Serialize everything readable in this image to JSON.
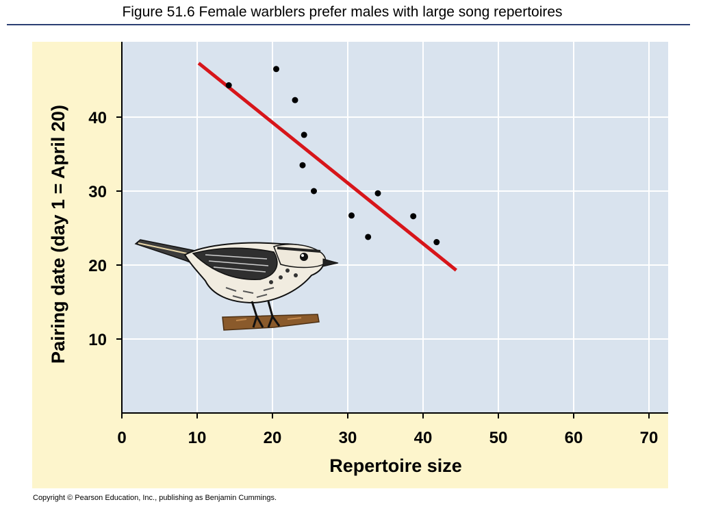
{
  "page": {
    "title": "Figure 51.6  Female warblers prefer males with large song repertoires",
    "copyright": "Copyright © Pearson Education, Inc., publishing as Benjamin Cummings."
  },
  "colors": {
    "plot_background": "#d9e3ee",
    "figure_background": "#fdf5cc",
    "grid": "#ffffff",
    "trend_line": "#d7151a",
    "points": "#000000",
    "title_rule": "#2b3f73"
  },
  "illustration": {
    "icon": "warbler-bird-icon"
  },
  "chart_data": {
    "type": "scatter",
    "xlabel": "Repertoire size",
    "ylabel": "Pairing date (day 1 = April 20)",
    "xlim": [
      0,
      72
    ],
    "ylim": [
      0,
      50
    ],
    "xticks": [
      0,
      10,
      20,
      30,
      40,
      50,
      60,
      70
    ],
    "yticks": [
      10,
      20,
      30,
      40
    ],
    "grid": true,
    "points": [
      {
        "x": 14.2,
        "y": 44.3
      },
      {
        "x": 20.5,
        "y": 46.5
      },
      {
        "x": 23.0,
        "y": 42.3
      },
      {
        "x": 24.2,
        "y": 37.6
      },
      {
        "x": 24.0,
        "y": 33.5
      },
      {
        "x": 25.5,
        "y": 30.0
      },
      {
        "x": 30.5,
        "y": 26.7
      },
      {
        "x": 32.7,
        "y": 23.8
      },
      {
        "x": 34.0,
        "y": 29.7
      },
      {
        "x": 38.7,
        "y": 26.6
      },
      {
        "x": 41.8,
        "y": 23.1
      }
    ],
    "trend_line": {
      "x": [
        10.2,
        44.4
      ],
      "y": [
        47.3,
        19.3
      ]
    }
  }
}
